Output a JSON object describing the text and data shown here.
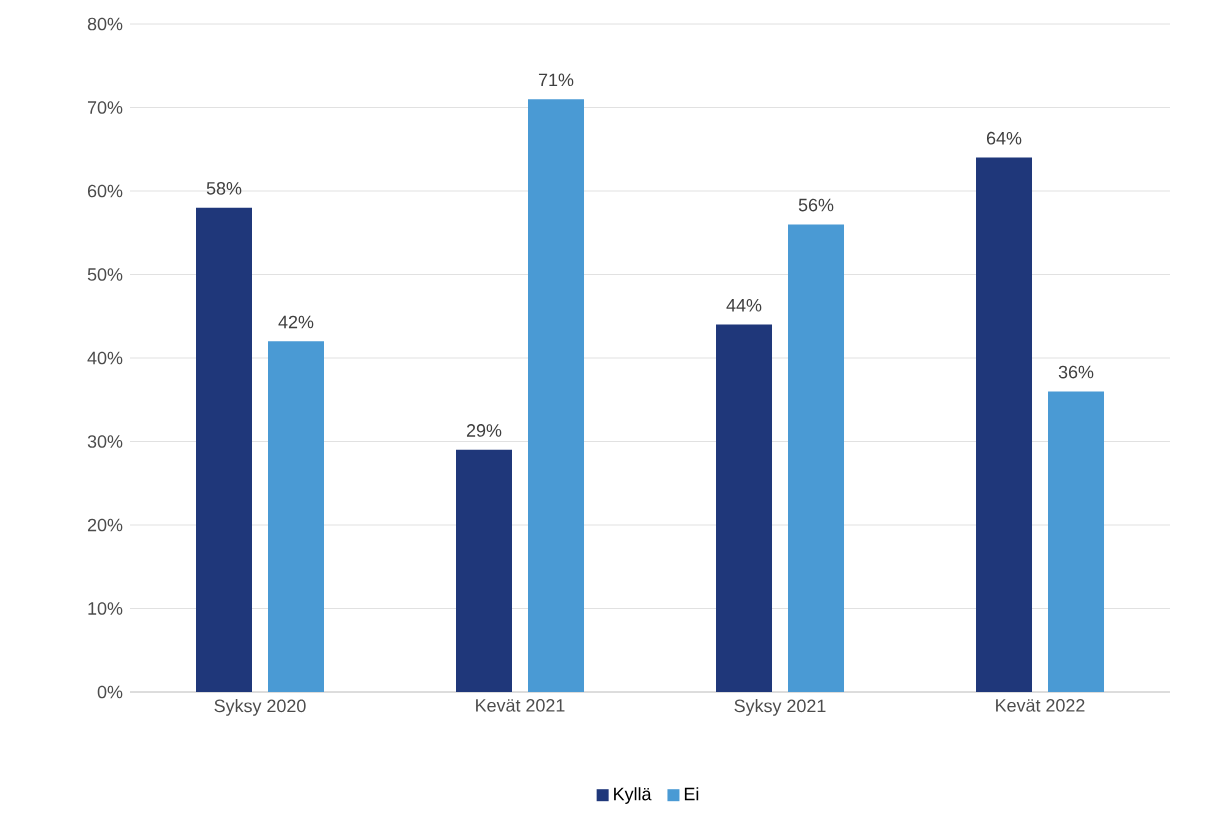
{
  "chart_data": {
    "type": "bar",
    "categories": [
      "Syksy 2020",
      "Kevät 2021",
      "Syksy 2021",
      "Kevät 2022"
    ],
    "series": [
      {
        "name": "Kyllä",
        "color": "#1f377a",
        "values": [
          58,
          29,
          44,
          64
        ],
        "value_labels": [
          "58%",
          "29%",
          "44%",
          "64%"
        ]
      },
      {
        "name": "Ei",
        "color": "#4a9ad4",
        "values": [
          42,
          71,
          56,
          36
        ],
        "value_labels": [
          "42%",
          "71%",
          "56%",
          "36%"
        ]
      }
    ],
    "ylim": [
      0,
      80
    ],
    "yticks": [
      {
        "value": 0,
        "label": "0%"
      },
      {
        "value": 10,
        "label": "10%"
      },
      {
        "value": 20,
        "label": "20%"
      },
      {
        "value": 30,
        "label": "30%"
      },
      {
        "value": 40,
        "label": "40%"
      },
      {
        "value": 50,
        "label": "50%"
      },
      {
        "value": 60,
        "label": "60%"
      },
      {
        "value": 70,
        "label": "70%"
      },
      {
        "value": 80,
        "label": "80%"
      }
    ],
    "grid": "y",
    "legend": "bottom"
  }
}
